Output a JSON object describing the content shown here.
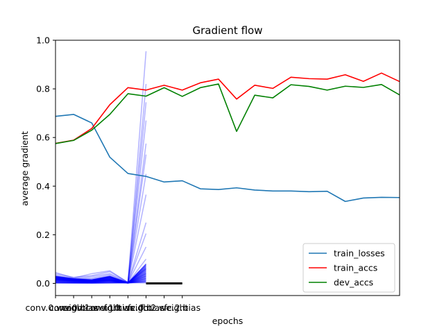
{
  "chart_data": {
    "type": "line",
    "title": "Gradient flow",
    "xlabel": "epochs",
    "ylabel": "average gradient",
    "ylim": [
      -0.05,
      1.0
    ],
    "yticks": [
      0.0,
      0.2,
      0.4,
      0.6,
      0.8,
      1.0
    ],
    "ytick_labels": [
      "0.0",
      "0.2",
      "0.4",
      "0.6",
      "0.8",
      "1.0"
    ],
    "xlim": [
      0,
      19
    ],
    "x": [
      0,
      1,
      2,
      3,
      4,
      5,
      6,
      7,
      8,
      9,
      10,
      11,
      12,
      13,
      14,
      15,
      16,
      17,
      18,
      19
    ],
    "xtick_labels": [
      "conv.0.weight",
      "conv.0.bias",
      "conv.1.weight",
      "conv.1.bias",
      "fc.0.weight",
      "fc.0.bias",
      "fc.2.weight",
      "fc.2.bias"
    ],
    "grid": false,
    "legend_position": "lower-right",
    "series": [
      {
        "name": "train_losses",
        "color": "#1f77b4",
        "values": [
          0.687,
          0.695,
          0.66,
          0.519,
          0.452,
          0.44,
          0.417,
          0.422,
          0.389,
          0.386,
          0.393,
          0.384,
          0.38,
          0.38,
          0.377,
          0.379,
          0.337,
          0.351,
          0.354,
          0.353
        ]
      },
      {
        "name": "train_accs",
        "color": "#ff0000",
        "values": [
          0.576,
          0.589,
          0.637,
          0.735,
          0.805,
          0.795,
          0.815,
          0.795,
          0.825,
          0.84,
          0.758,
          0.815,
          0.802,
          0.848,
          0.842,
          0.84,
          0.858,
          0.831,
          0.865,
          0.83
        ]
      },
      {
        "name": "dev_accs",
        "color": "#008000",
        "values": [
          0.575,
          0.588,
          0.63,
          0.695,
          0.78,
          0.77,
          0.805,
          0.769,
          0.805,
          0.82,
          0.625,
          0.774,
          0.763,
          0.817,
          0.81,
          0.795,
          0.811,
          0.806,
          0.818,
          0.775
        ]
      }
    ],
    "gradient_flow": {
      "color": "#0000ff",
      "x": [
        0,
        1,
        2,
        3,
        4,
        5
      ],
      "lines": [
        [
          0.045,
          0.022,
          0.04,
          0.052,
          0.004,
          0.955
        ],
        [
          0.04,
          0.025,
          0.032,
          0.048,
          0.005,
          0.82
        ],
        [
          0.035,
          0.02,
          0.028,
          0.04,
          0.004,
          0.745
        ],
        [
          0.03,
          0.018,
          0.022,
          0.035,
          0.003,
          0.67
        ],
        [
          0.028,
          0.017,
          0.018,
          0.03,
          0.003,
          0.575
        ],
        [
          0.026,
          0.016,
          0.015,
          0.028,
          0.003,
          0.53
        ],
        [
          0.025,
          0.016,
          0.014,
          0.026,
          0.003,
          0.45
        ],
        [
          0.024,
          0.015,
          0.013,
          0.024,
          0.003,
          0.365
        ],
        [
          0.023,
          0.015,
          0.012,
          0.022,
          0.002,
          0.25
        ],
        [
          0.022,
          0.014,
          0.011,
          0.02,
          0.002,
          0.205
        ],
        [
          0.021,
          0.014,
          0.011,
          0.018,
          0.002,
          0.15
        ],
        [
          0.02,
          0.013,
          0.01,
          0.016,
          0.002,
          0.1
        ],
        [
          0.019,
          0.013,
          0.01,
          0.015,
          0.002,
          0.08
        ],
        [
          0.018,
          0.012,
          0.009,
          0.014,
          0.002,
          0.06
        ],
        [
          0.017,
          0.012,
          0.009,
          0.013,
          0.001,
          0.04
        ],
        [
          0.016,
          0.011,
          0.008,
          0.012,
          0.001,
          0.03
        ],
        [
          0.015,
          0.011,
          0.008,
          0.011,
          0.001,
          0.02
        ],
        [
          0.014,
          0.01,
          0.007,
          0.01,
          0.001,
          0.01
        ]
      ],
      "zero_line": {
        "x": [
          5,
          7
        ],
        "y": 0.0,
        "color": "#000000"
      }
    }
  }
}
